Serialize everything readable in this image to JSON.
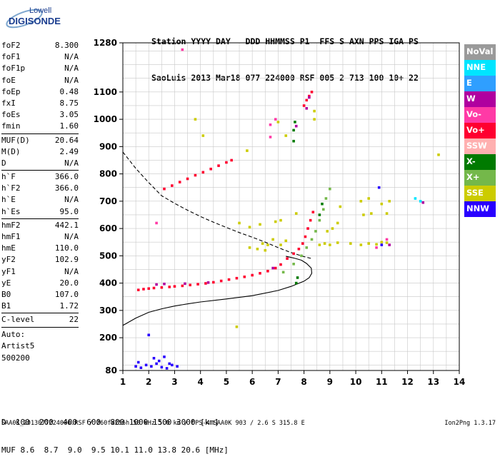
{
  "logo": {
    "line1": "Lowell",
    "line2": "DIGISONDE"
  },
  "header": {
    "line1": "Station YYYY DAY   DDD HHMMSS P1  FFS S AXN PPS IGA PS",
    "line2": "SaoLuis 2013 Mar18 077 224000 RSF 005 2 713 100 10+ 22"
  },
  "params": {
    "group1": [
      {
        "name": "foF2",
        "value": "8.300"
      },
      {
        "name": "foF1",
        "value": "N/A"
      },
      {
        "name": "foF1p",
        "value": "N/A"
      },
      {
        "name": "foE",
        "value": "N/A"
      },
      {
        "name": "foEp",
        "value": "0.48"
      },
      {
        "name": "fxI",
        "value": "8.75"
      },
      {
        "name": "foEs",
        "value": "3.05"
      },
      {
        "name": "fmin",
        "value": "1.60"
      }
    ],
    "group2": [
      {
        "name": "MUF(D)",
        "value": "20.64"
      },
      {
        "name": "M(D)",
        "value": "2.49"
      },
      {
        "name": "D",
        "value": "N/A"
      }
    ],
    "group3": [
      {
        "name": "h`F",
        "value": "366.0"
      },
      {
        "name": "h`F2",
        "value": "366.0"
      },
      {
        "name": "h`E",
        "value": "N/A"
      },
      {
        "name": "h`Es",
        "value": "95.0"
      }
    ],
    "group4": [
      {
        "name": "hmF2",
        "value": "442.1"
      },
      {
        "name": "hmF1",
        "value": "N/A"
      },
      {
        "name": "hmE",
        "value": "110.0"
      },
      {
        "name": "yF2",
        "value": "102.9"
      },
      {
        "name": "yF1",
        "value": "N/A"
      },
      {
        "name": "yE",
        "value": "20.0"
      },
      {
        "name": "B0",
        "value": "107.0"
      },
      {
        "name": "B1",
        "value": "1.72"
      }
    ],
    "group5": [
      {
        "name": "C-level",
        "value": "22"
      }
    ],
    "free_text": [
      "Auto:",
      "Artist5",
      "500200"
    ]
  },
  "legend": [
    {
      "label": "NoVal",
      "color": "#9a9a9a"
    },
    {
      "label": "NNE",
      "color": "#00e5ff"
    },
    {
      "label": "E",
      "color": "#2f9fff"
    },
    {
      "label": "W",
      "color": "#b0009f"
    },
    {
      "label": "Vo-",
      "color": "#ff3aa6"
    },
    {
      "label": "Vo+",
      "color": "#ff0030"
    },
    {
      "label": "SSW",
      "color": "#ffb0b0"
    },
    {
      "label": "X-",
      "color": "#007a00"
    },
    {
      "label": "X+",
      "color": "#74b84a"
    },
    {
      "label": "SSE",
      "color": "#cccc00"
    },
    {
      "label": "NNW",
      "color": "#2800ff"
    }
  ],
  "muf_table": {
    "row1_label": "D",
    "row1_values": "  100  200  400  600  800 1000 1500 3000 [km]",
    "row2_label": "MUF",
    "row2_values": " 8.6  8.7  9.0  9.5 10.1 11.0 13.8 20.6 [MHz]"
  },
  "footer": {
    "left": "SAA0K_2013077224000.RSF / 260fx256h 50 kHz 5.0 km / DPS-4 SAA0K 903 / 2.6 S 315.8 E",
    "right": "Ion2Png 1.3.17"
  },
  "chart_data": {
    "type": "scatter",
    "title": "",
    "xlabel": "",
    "ylabel": "",
    "xlim": [
      1,
      14
    ],
    "ylim": [
      80,
      1280
    ],
    "xticks": [
      1,
      2,
      3,
      4,
      5,
      6,
      7,
      8,
      9,
      10,
      11,
      12,
      13,
      14
    ],
    "yticks": [
      80,
      200,
      300,
      400,
      500,
      600,
      700,
      800,
      900,
      1000,
      1100,
      1280
    ],
    "grid": true,
    "units": {
      "x": "MHz",
      "y": "km"
    },
    "series": [
      {
        "name": "Vo+",
        "color": "#ff0030",
        "points": [
          [
            1.6,
            375
          ],
          [
            1.8,
            378
          ],
          [
            2.0,
            380
          ],
          [
            2.2,
            382
          ],
          [
            2.5,
            384
          ],
          [
            2.8,
            386
          ],
          [
            3.0,
            388
          ],
          [
            3.3,
            390
          ],
          [
            3.6,
            393
          ],
          [
            3.9,
            396
          ],
          [
            4.2,
            399
          ],
          [
            4.5,
            403
          ],
          [
            4.8,
            408
          ],
          [
            5.1,
            413
          ],
          [
            5.4,
            418
          ],
          [
            5.7,
            423
          ],
          [
            6.0,
            429
          ],
          [
            6.3,
            436
          ],
          [
            6.6,
            444
          ],
          [
            6.9,
            455
          ],
          [
            7.1,
            468
          ],
          [
            7.35,
            490
          ],
          [
            7.6,
            508
          ],
          [
            7.8,
            525
          ],
          [
            7.95,
            545
          ],
          [
            8.05,
            570
          ],
          [
            8.15,
            600
          ],
          [
            8.25,
            630
          ],
          [
            8.35,
            660
          ],
          [
            2.6,
            745
          ],
          [
            2.9,
            757
          ],
          [
            3.2,
            770
          ],
          [
            3.5,
            782
          ],
          [
            3.8,
            795
          ],
          [
            4.1,
            806
          ],
          [
            4.4,
            818
          ],
          [
            4.7,
            830
          ],
          [
            5.0,
            842
          ],
          [
            5.2,
            850
          ],
          [
            8.0,
            1050
          ],
          [
            8.1,
            1070
          ],
          [
            8.2,
            1085
          ],
          [
            8.3,
            1100
          ]
        ]
      },
      {
        "name": "X+",
        "color": "#74b84a",
        "points": [
          [
            7.2,
            440
          ],
          [
            7.6,
            470
          ],
          [
            7.9,
            500
          ],
          [
            8.1,
            530
          ],
          [
            8.3,
            560
          ],
          [
            8.45,
            590
          ],
          [
            8.6,
            630
          ],
          [
            8.75,
            670
          ],
          [
            8.85,
            710
          ],
          [
            9.0,
            745
          ]
        ]
      },
      {
        "name": "X-",
        "color": "#007a00",
        "points": [
          [
            7.7,
            400
          ],
          [
            7.75,
            420
          ],
          [
            7.6,
            920
          ],
          [
            7.6,
            960
          ],
          [
            7.65,
            990
          ],
          [
            8.6,
            650
          ],
          [
            8.7,
            690
          ]
        ]
      },
      {
        "name": "W",
        "color": "#b0009f",
        "points": [
          [
            2.3,
            395
          ],
          [
            2.6,
            397
          ],
          [
            3.4,
            398
          ],
          [
            4.3,
            402
          ],
          [
            6.8,
            455
          ],
          [
            8.1,
            1040
          ],
          [
            8.2,
            1080
          ],
          [
            7.7,
            975
          ],
          [
            12.6,
            695
          ],
          [
            11.3,
            540
          ]
        ]
      },
      {
        "name": "SSE",
        "color": "#cccc00",
        "points": [
          [
            5.8,
            885
          ],
          [
            6.4,
            545
          ],
          [
            5.9,
            530
          ],
          [
            6.2,
            525
          ],
          [
            6.5,
            520
          ],
          [
            5.5,
            620
          ],
          [
            5.9,
            605
          ],
          [
            6.3,
            615
          ],
          [
            6.6,
            540
          ],
          [
            6.8,
            560
          ],
          [
            8.6,
            540
          ],
          [
            8.8,
            545
          ],
          [
            9.0,
            540
          ],
          [
            9.3,
            548
          ],
          [
            10.2,
            540
          ],
          [
            10.5,
            545
          ],
          [
            10.8,
            542
          ],
          [
            11.0,
            550
          ],
          [
            11.2,
            548
          ],
          [
            9.8,
            545
          ],
          [
            10.3,
            650
          ],
          [
            10.6,
            655
          ],
          [
            11.2,
            655
          ],
          [
            10.2,
            700
          ],
          [
            10.5,
            710
          ],
          [
            11.0,
            690
          ],
          [
            11.3,
            700
          ],
          [
            9.4,
            680
          ],
          [
            8.9,
            590
          ],
          [
            9.1,
            600
          ],
          [
            9.3,
            620
          ],
          [
            8.4,
            1030
          ],
          [
            8.4,
            1000
          ],
          [
            7.1,
            540
          ],
          [
            7.3,
            555
          ],
          [
            7.7,
            655
          ],
          [
            5.4,
            240
          ],
          [
            7.0,
            990
          ],
          [
            7.3,
            940
          ],
          [
            4.1,
            940
          ],
          [
            3.8,
            1000
          ],
          [
            13.2,
            870
          ],
          [
            7.1,
            630
          ],
          [
            6.9,
            625
          ]
        ]
      },
      {
        "name": "NNW",
        "color": "#2800ff",
        "points": [
          [
            1.7,
            90
          ],
          [
            1.9,
            100
          ],
          [
            2.1,
            95
          ],
          [
            2.3,
            105
          ],
          [
            2.5,
            92
          ],
          [
            2.7,
            88
          ],
          [
            2.9,
            100
          ],
          [
            3.1,
            95
          ],
          [
            1.6,
            110
          ],
          [
            2.2,
            125
          ],
          [
            2.4,
            115
          ],
          [
            2.6,
            130
          ],
          [
            2.0,
            210
          ],
          [
            2.8,
            105
          ],
          [
            1.5,
            95
          ],
          [
            10.9,
            750
          ],
          [
            11.0,
            540
          ]
        ]
      },
      {
        "name": "NNE",
        "color": "#00e5ff",
        "points": [
          [
            12.3,
            710
          ],
          [
            12.5,
            700
          ]
        ]
      },
      {
        "name": "Vo-",
        "color": "#ff3aa6",
        "points": [
          [
            2.3,
            620
          ],
          [
            6.7,
            980
          ],
          [
            6.9,
            1000
          ],
          [
            3.3,
            1255
          ],
          [
            11.2,
            560
          ],
          [
            10.8,
            530
          ],
          [
            6.7,
            935
          ]
        ]
      }
    ],
    "lines": [
      {
        "name": "dashed",
        "style": "dashed",
        "points": [
          [
            1.0,
            880
          ],
          [
            1.5,
            820
          ],
          [
            2.0,
            768
          ],
          [
            2.5,
            720
          ],
          [
            3.0,
            692
          ],
          [
            3.5,
            667
          ],
          [
            4.0,
            644
          ],
          [
            4.5,
            623
          ],
          [
            5.0,
            604
          ],
          [
            5.5,
            585
          ],
          [
            6.0,
            568
          ],
          [
            6.5,
            550
          ],
          [
            7.0,
            530
          ],
          [
            7.5,
            512
          ],
          [
            8.0,
            497
          ],
          [
            8.3,
            490
          ]
        ]
      },
      {
        "name": "solid",
        "style": "solid",
        "points": [
          [
            1.0,
            245
          ],
          [
            1.5,
            272
          ],
          [
            2.0,
            293
          ],
          [
            2.5,
            306
          ],
          [
            3.0,
            316
          ],
          [
            3.5,
            324
          ],
          [
            4.0,
            331
          ],
          [
            5.0,
            342
          ],
          [
            6.0,
            354
          ],
          [
            7.0,
            373
          ],
          [
            7.5,
            388
          ],
          [
            8.0,
            407
          ],
          [
            8.2,
            420
          ],
          [
            8.3,
            436
          ],
          [
            8.28,
            455
          ],
          [
            8.1,
            472
          ],
          [
            7.9,
            484
          ],
          [
            7.6,
            492
          ],
          [
            7.3,
            498
          ]
        ]
      }
    ]
  }
}
